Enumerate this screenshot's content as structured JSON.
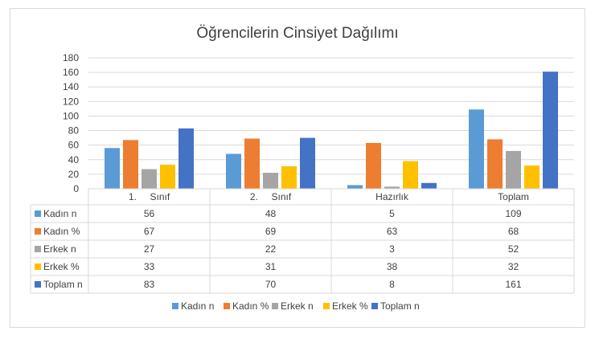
{
  "chart_data": {
    "type": "bar",
    "title": "Öğrencilerin Cinsiyet Dağılımı",
    "categories": [
      "1.     Sınıf",
      "2.     Sınıf",
      "Hazırlık",
      "Toplam"
    ],
    "ylim": [
      0,
      180
    ],
    "yticks": [
      0,
      20,
      40,
      60,
      80,
      100,
      120,
      140,
      160,
      180
    ],
    "grid": true,
    "legend_position": "bottom",
    "data_table": true,
    "series": [
      {
        "name": "Kadın n",
        "color": "#5b9bd5",
        "values": [
          56,
          48,
          5,
          109
        ]
      },
      {
        "name": "Kadın %",
        "color": "#ed7d31",
        "values": [
          67,
          69,
          63,
          68
        ]
      },
      {
        "name": "Erkek n",
        "color": "#a5a5a5",
        "values": [
          27,
          22,
          3,
          52
        ]
      },
      {
        "name": "Erkek %",
        "color": "#ffc000",
        "values": [
          33,
          31,
          38,
          32
        ]
      },
      {
        "name": "Toplam n",
        "color": "#4472c4",
        "values": [
          83,
          70,
          8,
          161
        ]
      }
    ]
  }
}
